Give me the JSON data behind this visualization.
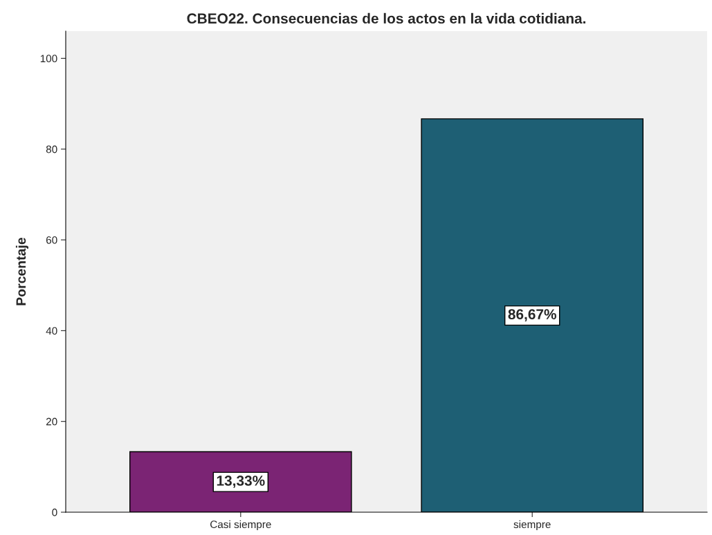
{
  "chart_data": {
    "type": "bar",
    "title": "CBEO22. Consecuencias de los actos en la vida cotidiana.",
    "ylabel": "Porcentaje",
    "categories": [
      "Casi siempre",
      "siempre"
    ],
    "values": [
      13.33,
      86.67
    ],
    "colors": [
      "#7b2474",
      "#1e5f74"
    ],
    "value_labels": [
      "13,33%",
      "86,67%"
    ],
    "ylim": [
      0,
      106
    ],
    "yticks": [
      0,
      20,
      40,
      60,
      80,
      100
    ],
    "grid": false
  }
}
